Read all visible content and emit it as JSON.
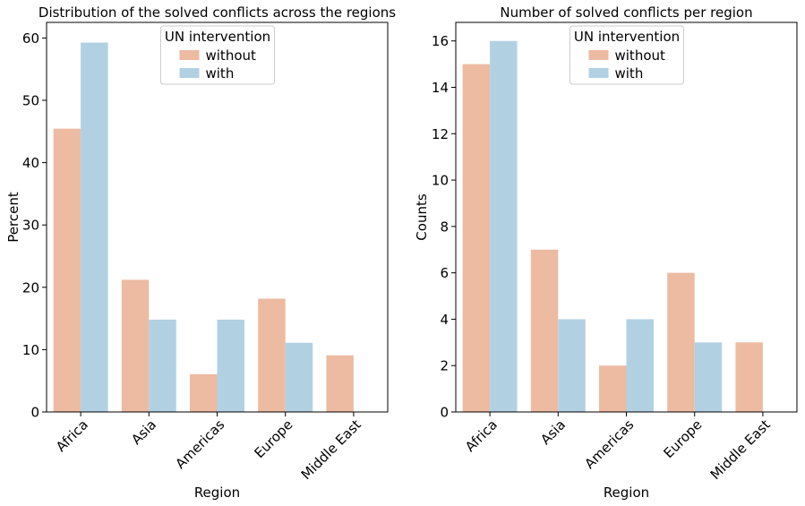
{
  "chart_data": [
    {
      "type": "bar",
      "title": "Distribution of the solved conflicts across the regions",
      "xlabel": "Region",
      "ylabel": "Percent",
      "categories": [
        "Africa",
        "Asia",
        "Americas",
        "Europe",
        "Middle East"
      ],
      "series": [
        {
          "name": "without",
          "values": [
            45.45,
            21.21,
            6.06,
            18.18,
            9.09
          ]
        },
        {
          "name": "with",
          "values": [
            59.26,
            14.81,
            14.81,
            11.11,
            null
          ]
        }
      ],
      "yticks": [
        0,
        10,
        20,
        30,
        40,
        50,
        60
      ],
      "ylim": [
        0,
        62.5
      ],
      "legend": {
        "title": "UN intervention",
        "placement": "top-center"
      },
      "grid": false
    },
    {
      "type": "bar",
      "title": "Number of solved conflicts per region",
      "xlabel": "Region",
      "ylabel": "Counts",
      "categories": [
        "Africa",
        "Asia",
        "Americas",
        "Europe",
        "Middle East"
      ],
      "series": [
        {
          "name": "without",
          "values": [
            15,
            7,
            2,
            6,
            3
          ]
        },
        {
          "name": "with",
          "values": [
            16,
            4,
            4,
            3,
            null
          ]
        }
      ],
      "yticks": [
        0,
        2,
        4,
        6,
        8,
        10,
        12,
        14,
        16
      ],
      "ylim": [
        0,
        16.8
      ],
      "legend": {
        "title": "UN intervention",
        "placement": "top-center"
      },
      "grid": false
    }
  ],
  "colors": {
    "without": "#ecbba2",
    "with": "#b1d1e3"
  }
}
